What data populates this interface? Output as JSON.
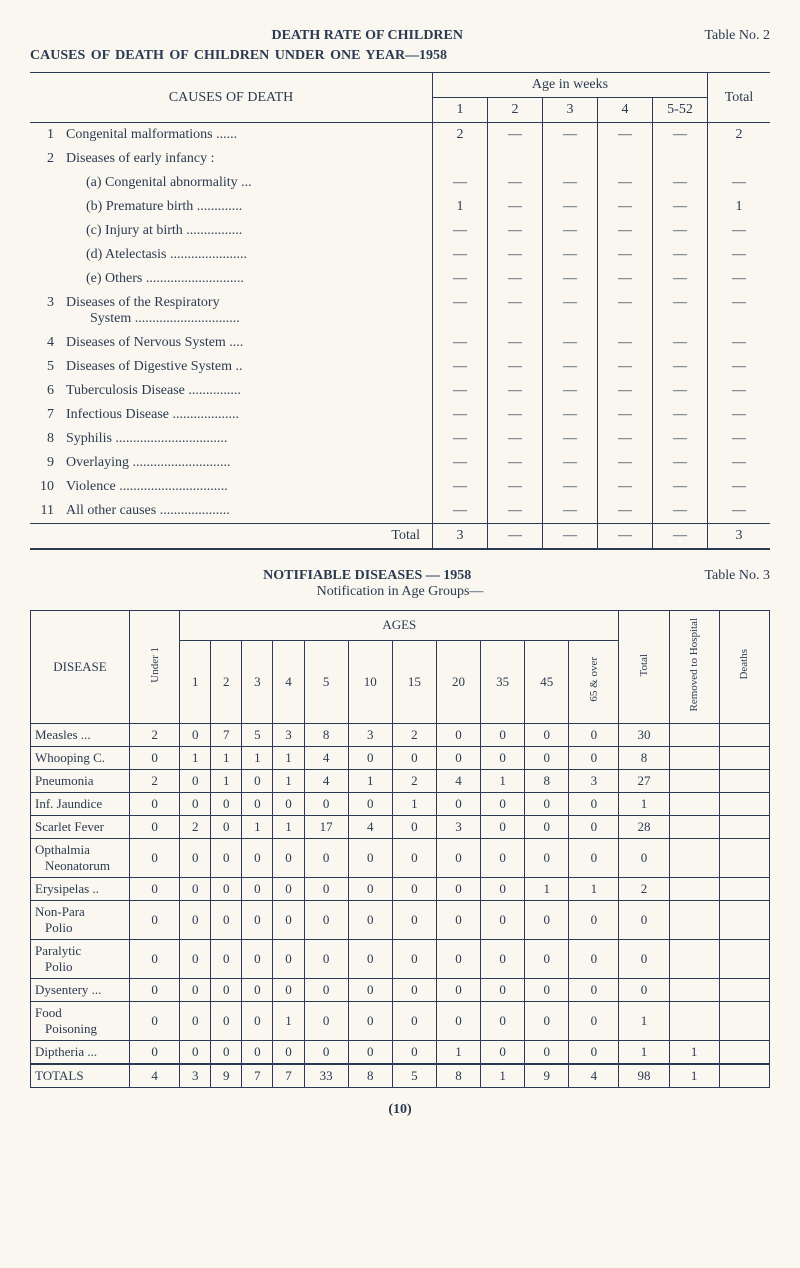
{
  "table_no_1": "Table No. 2",
  "title1_main": "DEATH RATE OF CHILDREN",
  "subtitle1": "CAUSES OF DEATH OF CHILDREN UNDER ONE YEAR—1958",
  "t1": {
    "cod_head": "CAUSES OF DEATH",
    "age_head": "Age in weeks",
    "age_cols": [
      "1",
      "2",
      "3",
      "4",
      "5-52"
    ],
    "total_head": "Total",
    "total_label": "Total",
    "rows": [
      {
        "no": "1",
        "label": "Congenital malformations ......",
        "c": [
          "2",
          "—",
          "—",
          "—",
          "—"
        ],
        "t": "2"
      },
      {
        "no": "2",
        "label": "Diseases of early infancy :",
        "c": [
          "",
          "",
          "",
          "",
          ""
        ],
        "t": ""
      },
      {
        "no": "",
        "label": "(a) Congenital abnormality ...",
        "sub": true,
        "c": [
          "—",
          "—",
          "—",
          "—",
          "—"
        ],
        "t": "—"
      },
      {
        "no": "",
        "label": "(b) Premature birth .............",
        "sub": true,
        "c": [
          "1",
          "—",
          "—",
          "—",
          "—"
        ],
        "t": "1"
      },
      {
        "no": "",
        "label": "(c) Injury at birth ................",
        "sub": true,
        "c": [
          "—",
          "—",
          "—",
          "—",
          "—"
        ],
        "t": "—"
      },
      {
        "no": "",
        "label": "(d) Atelectasis ......................",
        "sub": true,
        "c": [
          "—",
          "—",
          "—",
          "—",
          "—"
        ],
        "t": "—"
      },
      {
        "no": "",
        "label": "(e) Others ............................",
        "sub": true,
        "c": [
          "—",
          "—",
          "—",
          "—",
          "—"
        ],
        "t": "—"
      },
      {
        "no": "3",
        "label": "Diseases of the Respiratory",
        "label2": "System ..............................",
        "c": [
          "—",
          "—",
          "—",
          "—",
          "—"
        ],
        "t": "—"
      },
      {
        "no": "4",
        "label": "Diseases of Nervous System ....",
        "c": [
          "—",
          "—",
          "—",
          "—",
          "—"
        ],
        "t": "—"
      },
      {
        "no": "5",
        "label": "Diseases of Digestive System ..",
        "c": [
          "—",
          "—",
          "—",
          "—",
          "—"
        ],
        "t": "—"
      },
      {
        "no": "6",
        "label": "Tuberculosis Disease ...............",
        "c": [
          "—",
          "—",
          "—",
          "—",
          "—"
        ],
        "t": "—"
      },
      {
        "no": "7",
        "label": "Infectious Disease ...................",
        "c": [
          "—",
          "—",
          "—",
          "—",
          "—"
        ],
        "t": "—"
      },
      {
        "no": "8",
        "label": "Syphilis ................................",
        "c": [
          "—",
          "—",
          "—",
          "—",
          "—"
        ],
        "t": "—"
      },
      {
        "no": "9",
        "label": "Overlaying ............................",
        "c": [
          "—",
          "—",
          "—",
          "—",
          "—"
        ],
        "t": "—"
      },
      {
        "no": "10",
        "label": "Violence ...............................",
        "c": [
          "—",
          "—",
          "—",
          "—",
          "—"
        ],
        "t": "—"
      },
      {
        "no": "11",
        "label": "All other causes ....................",
        "c": [
          "—",
          "—",
          "—",
          "—",
          "—"
        ],
        "t": "—"
      }
    ],
    "total_row": {
      "c": [
        "3",
        "—",
        "—",
        "—",
        "—"
      ],
      "t": "3"
    }
  },
  "mid_title": "NOTIFIABLE  DISEASES  —  1958",
  "mid_sub": "Notification in Age Groups—",
  "table_no_2": "Table No. 3",
  "t2": {
    "disease_head": "DISEASE",
    "under_head": "Under\n1",
    "ages_head": "AGES",
    "age_cols": [
      "1",
      "2",
      "3",
      "4",
      "5",
      "10",
      "15",
      "20",
      "35",
      "45",
      "65 &\nover"
    ],
    "total_head": "Total",
    "removed_head": "Removed\nto Hospital",
    "deaths_head": "Deaths",
    "rows": [
      {
        "d": "Measles     ...",
        "u": "2",
        "a": [
          "0",
          "7",
          "5",
          "3",
          "8",
          "3",
          "2",
          "0",
          "0",
          "0",
          "0"
        ],
        "tot": "30",
        "rem": "",
        "dth": ""
      },
      {
        "d": "Whooping C.",
        "u": "0",
        "a": [
          "1",
          "1",
          "1",
          "1",
          "4",
          "0",
          "0",
          "0",
          "0",
          "0",
          "0"
        ],
        "tot": "8",
        "rem": "",
        "dth": ""
      },
      {
        "d": "Pneumonia",
        "u": "2",
        "a": [
          "0",
          "1",
          "0",
          "1",
          "4",
          "1",
          "2",
          "4",
          "1",
          "8",
          "3"
        ],
        "tot": "27",
        "rem": "",
        "dth": ""
      },
      {
        "d": "Inf. Jaundice",
        "u": "0",
        "a": [
          "0",
          "0",
          "0",
          "0",
          "0",
          "0",
          "1",
          "0",
          "0",
          "0",
          "0"
        ],
        "tot": "1",
        "rem": "",
        "dth": ""
      },
      {
        "d": "Scarlet Fever",
        "u": "0",
        "a": [
          "2",
          "0",
          "1",
          "1",
          "17",
          "4",
          "0",
          "3",
          "0",
          "0",
          "0"
        ],
        "tot": "28",
        "rem": "",
        "dth": ""
      },
      {
        "d": "Opthalmia",
        "d2": "Neonatorum",
        "u": "0",
        "a": [
          "0",
          "0",
          "0",
          "0",
          "0",
          "0",
          "0",
          "0",
          "0",
          "0",
          "0"
        ],
        "tot": "0",
        "rem": "",
        "dth": ""
      },
      {
        "d": "Erysipelas  ..",
        "u": "0",
        "a": [
          "0",
          "0",
          "0",
          "0",
          "0",
          "0",
          "0",
          "0",
          "0",
          "1",
          "1"
        ],
        "tot": "2",
        "rem": "",
        "dth": ""
      },
      {
        "d": "Non-Para",
        "d2": "Polio",
        "u": "0",
        "a": [
          "0",
          "0",
          "0",
          "0",
          "0",
          "0",
          "0",
          "0",
          "0",
          "0",
          "0"
        ],
        "tot": "0",
        "rem": "",
        "dth": ""
      },
      {
        "d": "Paralytic",
        "d2": "Polio",
        "u": "0",
        "a": [
          "0",
          "0",
          "0",
          "0",
          "0",
          "0",
          "0",
          "0",
          "0",
          "0",
          "0"
        ],
        "tot": "0",
        "rem": "",
        "dth": ""
      },
      {
        "d": "Dysentery ...",
        "u": "0",
        "a": [
          "0",
          "0",
          "0",
          "0",
          "0",
          "0",
          "0",
          "0",
          "0",
          "0",
          "0"
        ],
        "tot": "0",
        "rem": "",
        "dth": ""
      },
      {
        "d": "Food",
        "d2": "Poisoning",
        "u": "0",
        "a": [
          "0",
          "0",
          "0",
          "1",
          "0",
          "0",
          "0",
          "0",
          "0",
          "0",
          "0"
        ],
        "tot": "1",
        "rem": "",
        "dth": ""
      },
      {
        "d": "Diptheria  ...",
        "u": "0",
        "a": [
          "0",
          "0",
          "0",
          "0",
          "0",
          "0",
          "0",
          "1",
          "0",
          "0",
          "0"
        ],
        "tot": "1",
        "rem": "1",
        "dth": ""
      }
    ],
    "totals": {
      "label": "TOTALS",
      "u": "4",
      "a": [
        "3",
        "9",
        "7",
        "7",
        "33",
        "8",
        "5",
        "8",
        "1",
        "9",
        "4"
      ],
      "tot": "98",
      "rem": "1",
      "dth": ""
    }
  },
  "pagenum": "(10)"
}
